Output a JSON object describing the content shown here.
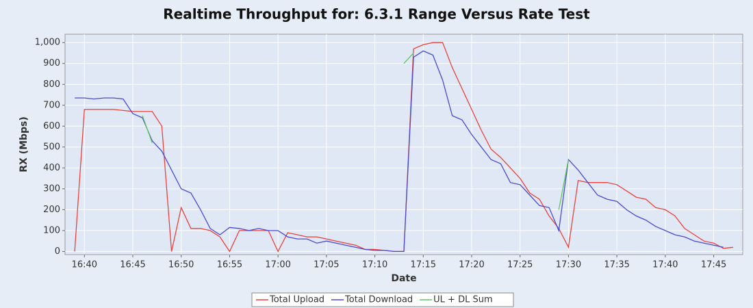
{
  "chart_data": {
    "type": "line",
    "title": "Realtime Throughput for: 6.3.1 Range Versus Rate Test",
    "x_label": "Date",
    "y_label": "RX (Mbps)",
    "x": [
      "16:39",
      "16:40",
      "16:41",
      "16:42",
      "16:43",
      "16:44",
      "16:45",
      "16:46",
      "16:47",
      "16:48",
      "16:49",
      "16:50",
      "16:51",
      "16:52",
      "16:53",
      "16:54",
      "16:55",
      "16:56",
      "16:57",
      "16:58",
      "16:59",
      "17:00",
      "17:01",
      "17:02",
      "17:03",
      "17:04",
      "17:05",
      "17:06",
      "17:07",
      "17:08",
      "17:09",
      "17:10",
      "17:11",
      "17:12",
      "17:13",
      "17:14",
      "17:15",
      "17:16",
      "17:17",
      "17:18",
      "17:19",
      "17:20",
      "17:21",
      "17:22",
      "17:23",
      "17:24",
      "17:25",
      "17:26",
      "17:27",
      "17:28",
      "17:29",
      "17:30",
      "17:31",
      "17:32",
      "17:33",
      "17:34",
      "17:35",
      "17:36",
      "17:37",
      "17:38",
      "17:39",
      "17:40",
      "17:41",
      "17:42",
      "17:43",
      "17:44",
      "17:45",
      "17:46",
      "17:47"
    ],
    "series": [
      {
        "name": "Total Upload",
        "color": "#e8413c",
        "values": [
          0,
          680,
          680,
          680,
          680,
          675,
          670,
          670,
          670,
          600,
          0,
          210,
          110,
          110,
          100,
          70,
          0,
          100,
          100,
          100,
          100,
          0,
          90,
          80,
          70,
          70,
          60,
          50,
          40,
          30,
          10,
          10,
          5,
          0,
          0,
          970,
          990,
          1000,
          1000,
          880,
          780,
          680,
          580,
          490,
          450,
          400,
          350,
          280,
          250,
          170,
          110,
          20,
          340,
          330,
          330,
          330,
          320,
          290,
          260,
          250,
          210,
          200,
          170,
          110,
          80,
          50,
          40,
          15,
          20
        ]
      },
      {
        "name": "Total Download",
        "color": "#4a4ad0",
        "values": [
          735,
          735,
          730,
          735,
          735,
          730,
          660,
          640,
          530,
          480,
          390,
          300,
          280,
          200,
          110,
          80,
          115,
          110,
          100,
          110,
          100,
          100,
          70,
          60,
          60,
          40,
          50,
          40,
          30,
          20,
          10,
          5,
          5,
          0,
          0,
          930,
          960,
          940,
          820,
          650,
          630,
          560,
          500,
          440,
          420,
          330,
          320,
          270,
          220,
          210,
          100,
          440,
          390,
          330,
          270,
          250,
          240,
          200,
          170,
          150,
          120,
          100,
          80,
          70,
          50,
          40,
          30,
          20,
          null
        ]
      },
      {
        "name": "UL + DL Sum",
        "color": "#5cc85c",
        "values": [
          null,
          null,
          null,
          null,
          null,
          null,
          null,
          650,
          520,
          null,
          null,
          null,
          null,
          null,
          null,
          null,
          null,
          null,
          null,
          null,
          null,
          null,
          null,
          null,
          null,
          null,
          null,
          null,
          null,
          null,
          null,
          null,
          null,
          null,
          900,
          950,
          null,
          null,
          null,
          null,
          null,
          null,
          null,
          null,
          null,
          null,
          null,
          null,
          null,
          null,
          200,
          440,
          null,
          null,
          null,
          null,
          null,
          null,
          null,
          null,
          null,
          null,
          null,
          null,
          null,
          null,
          null,
          null,
          null
        ]
      }
    ],
    "xlim": [
      "16:38",
      "17:48"
    ],
    "xticks": [
      "16:40",
      "16:45",
      "16:50",
      "16:55",
      "17:00",
      "17:05",
      "17:10",
      "17:15",
      "17:20",
      "17:25",
      "17:30",
      "17:35",
      "17:40",
      "17:45"
    ],
    "ylim": [
      -15,
      1040
    ],
    "yticks": [
      0,
      100,
      200,
      300,
      400,
      500,
      600,
      700,
      800,
      900,
      {
        "value": 1000,
        "label": "1,000"
      }
    ],
    "grid": true,
    "legend": "bottom"
  }
}
